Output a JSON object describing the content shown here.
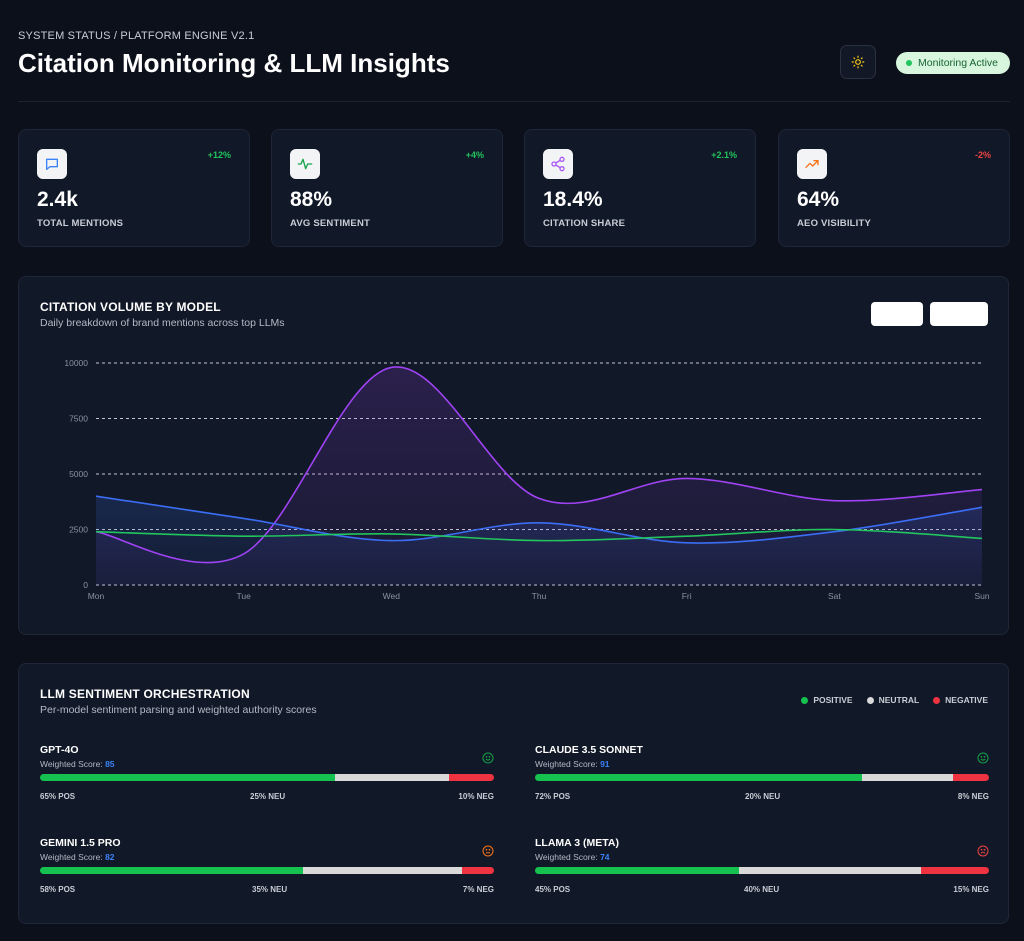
{
  "header": {
    "breadcrumb": "SYSTEM STATUS / PLATFORM ENGINE V2.1",
    "title": "Citation Monitoring & LLM Insights",
    "status_label": "Monitoring Active",
    "theme_icon": "sun-icon"
  },
  "kpis": [
    {
      "value": "2.4k",
      "label": "TOTAL MENTIONS",
      "delta": "+12%",
      "trend": "positive",
      "icon": "message-icon"
    },
    {
      "value": "88%",
      "label": "AVG SENTIMENT",
      "delta": "+4%",
      "trend": "positive",
      "icon": "activity-icon"
    },
    {
      "value": "18.4%",
      "label": "CITATION SHARE",
      "delta": "+2.1%",
      "trend": "positive",
      "icon": "share-icon"
    },
    {
      "value": "64%",
      "label": "AEO VISIBILITY",
      "delta": "-2%",
      "trend": "negative",
      "icon": "trending-up-icon"
    }
  ],
  "chart_panel": {
    "title": "CITATION VOLUME BY MODEL",
    "subtitle": "Daily breakdown of brand mentions across top LLMs"
  },
  "chart_data": {
    "type": "line",
    "categories": [
      "Mon",
      "Tue",
      "Wed",
      "Thu",
      "Fri",
      "Sat",
      "Sun"
    ],
    "ylim": [
      0,
      10000
    ],
    "yticks": [
      0,
      2500,
      5000,
      7500,
      10000
    ],
    "grid": true,
    "series": [
      {
        "color": "#a043f5",
        "values": [
          2400,
          1400,
          9800,
          3900,
          4800,
          3800,
          4300
        ],
        "area": true
      },
      {
        "color": "#3b6ef5",
        "values": [
          4000,
          3000,
          2000,
          2800,
          1900,
          2400,
          3500
        ],
        "area": true
      },
      {
        "color": "#22c55e",
        "values": [
          2400,
          2200,
          2300,
          2000,
          2200,
          2500,
          2100
        ],
        "area": false
      }
    ]
  },
  "sentiment": {
    "title": "LLM SENTIMENT ORCHESTRATION",
    "subtitle": "Per-model sentiment parsing and weighted authority scores",
    "score_label": "Weighted Score:",
    "legend": [
      {
        "label": "POSITIVE",
        "color": "#16c24f"
      },
      {
        "label": "NEUTRAL",
        "color": "#d9d9d9"
      },
      {
        "label": "NEGATIVE",
        "color": "#ef3340"
      }
    ],
    "models": [
      {
        "name": "GPT-4O",
        "score": "85",
        "pos": 65,
        "neu": 25,
        "neg": 10,
        "pos_label": "65% POS",
        "neu_label": "25% NEU",
        "neg_label": "10% NEG",
        "face": "smile-icon",
        "face_color": "#16a34a"
      },
      {
        "name": "CLAUDE 3.5 SONNET",
        "score": "91",
        "pos": 72,
        "neu": 20,
        "neg": 8,
        "pos_label": "72% POS",
        "neu_label": "20% NEU",
        "neg_label": "8% NEG",
        "face": "smile-icon",
        "face_color": "#16a34a"
      },
      {
        "name": "GEMINI 1.5 PRO",
        "score": "82",
        "pos": 58,
        "neu": 35,
        "neg": 7,
        "pos_label": "58% POS",
        "neu_label": "35% NEU",
        "neg_label": "7% NEG",
        "face": "neutral-face-icon",
        "face_color": "#f97316"
      },
      {
        "name": "LLAMA 3 (META)",
        "score": "74",
        "pos": 45,
        "neu": 40,
        "neg": 15,
        "pos_label": "45% POS",
        "neu_label": "40% NEU",
        "neg_label": "15% NEG",
        "face": "frown-icon",
        "face_color": "#ef4444"
      }
    ]
  }
}
